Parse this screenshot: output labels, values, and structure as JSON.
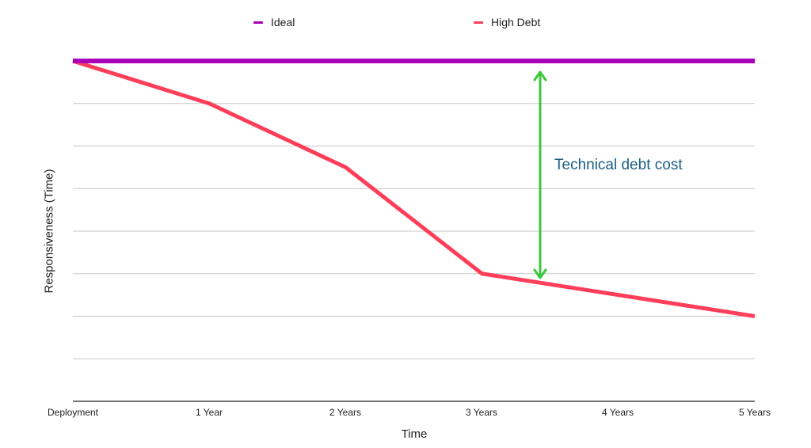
{
  "chart_data": {
    "type": "line",
    "title": "",
    "xlabel": "Time",
    "ylabel": "Responsiveness (Time)",
    "categories": [
      "Deployment",
      "1 Year",
      "2 Years",
      "3 Years",
      "4 Years",
      "5 Years"
    ],
    "series": [
      {
        "name": "Ideal",
        "color": "#aa00b8",
        "values": [
          8,
          8,
          8,
          8,
          8,
          8
        ]
      },
      {
        "name": "High Debt",
        "color": "#ff3f5a",
        "values": [
          8,
          7,
          5.5,
          3,
          2.5,
          2
        ]
      }
    ],
    "ylim": [
      0,
      8
    ],
    "y_tick_labels_shown": false,
    "grid": true,
    "legend_position": "top",
    "annotations": [
      {
        "text": "Technical debt cost",
        "type": "double-arrow",
        "color": "#3cc73c",
        "x_between": "3 Years-4 Years",
        "from_series": "Ideal",
        "to_series": "High Debt"
      }
    ]
  },
  "legend": [
    {
      "label": "Ideal",
      "color": "#aa00b8"
    },
    {
      "label": "High Debt",
      "color": "#ff3f5a"
    }
  ],
  "annotation_text": "Technical debt cost",
  "axis": {
    "x_label": "Time",
    "y_label": "Responsiveness (Time)"
  }
}
